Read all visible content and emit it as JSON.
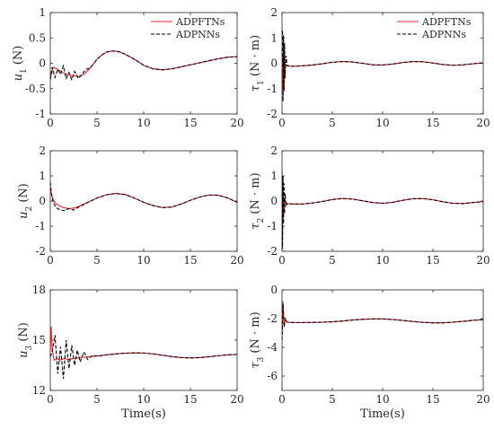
{
  "legend": {
    "entries": [
      "ADPFTNs",
      "ADPNNs"
    ]
  },
  "colors": {
    "ADPFTNs": "#e8242a",
    "ADPNNs": "#000000"
  },
  "chart_data": [
    {
      "id": "u1",
      "type": "line",
      "ylabel": "u_1 (N)",
      "ylabel_var": "u",
      "ylabel_sub": "1",
      "ylabel_unit": " (N)",
      "xlim": [
        0,
        20
      ],
      "ylim": [
        -1,
        1
      ],
      "xticks": [
        "0",
        "5",
        "10",
        "15",
        "20"
      ],
      "yticks": [
        "-1",
        "-0.5",
        "0",
        "0.5",
        "1"
      ],
      "legend": "top-right",
      "series": [
        {
          "name": "ADPFTNs",
          "style": "solid",
          "x": [
            0,
            0.3,
            0.6,
            1,
            1.5,
            2,
            2.5,
            3,
            3.5,
            4,
            4.5,
            5,
            5.5,
            6,
            6.5,
            7,
            7.5,
            8,
            9,
            10,
            11,
            12,
            13,
            14,
            15,
            16,
            17,
            18,
            19,
            20
          ],
          "y": [
            -0.3,
            -0.08,
            -0.1,
            -0.15,
            -0.2,
            -0.23,
            -0.25,
            -0.26,
            -0.23,
            -0.15,
            -0.04,
            0.08,
            0.16,
            0.22,
            0.24,
            0.24,
            0.22,
            0.18,
            0.08,
            -0.04,
            -0.11,
            -0.13,
            -0.11,
            -0.07,
            -0.03,
            0.01,
            0.05,
            0.09,
            0.12,
            0.13
          ]
        },
        {
          "name": "ADPNNs",
          "style": "dashed",
          "x": [
            0,
            0.2,
            0.5,
            0.8,
            1.1,
            1.4,
            1.7,
            2,
            2.3,
            2.6,
            3,
            3.4,
            3.8,
            4.2,
            4.6,
            5,
            5.5,
            6,
            6.5,
            7,
            7.5,
            8,
            9,
            10,
            11,
            12,
            13,
            14,
            15,
            16,
            17,
            18,
            19,
            20
          ],
          "y": [
            -0.32,
            -0.08,
            -0.28,
            -0.12,
            -0.22,
            -0.05,
            -0.3,
            -0.18,
            -0.32,
            -0.16,
            -0.3,
            -0.22,
            -0.12,
            -0.1,
            -0.02,
            0.08,
            0.16,
            0.22,
            0.24,
            0.24,
            0.22,
            0.18,
            0.08,
            -0.04,
            -0.11,
            -0.13,
            -0.11,
            -0.07,
            -0.03,
            0.01,
            0.05,
            0.09,
            0.12,
            0.13
          ]
        }
      ]
    },
    {
      "id": "tau1",
      "type": "line",
      "ylabel": "τ_1 (N · m)",
      "ylabel_var": "τ",
      "ylabel_sub": "1",
      "ylabel_unit": " (N · m)",
      "xlim": [
        0,
        20
      ],
      "ylim": [
        -2,
        2
      ],
      "xticks": [
        "0",
        "5",
        "10",
        "15",
        "20"
      ],
      "yticks": [
        "-2",
        "-1",
        "0",
        "1",
        "2"
      ],
      "legend": "top-right",
      "series": [
        {
          "name": "ADPFTNs",
          "style": "solid",
          "x": [
            0,
            0.05,
            0.1,
            0.15,
            0.2,
            0.3,
            0.5,
            1,
            2,
            3,
            4,
            5,
            6,
            7,
            8,
            9,
            10,
            11,
            12,
            13,
            14,
            15,
            16,
            17,
            18,
            19,
            20
          ],
          "y": [
            -0.1,
            -1.1,
            0.3,
            -0.6,
            0.1,
            -0.05,
            -0.08,
            -0.12,
            -0.1,
            -0.07,
            -0.02,
            0.04,
            0.07,
            0.05,
            0,
            -0.06,
            -0.07,
            -0.03,
            0.03,
            0.07,
            0.06,
            0.01,
            -0.05,
            -0.08,
            -0.06,
            -0.02,
            0.02
          ]
        },
        {
          "name": "ADPNNs",
          "style": "dashed",
          "x": [
            0,
            0.05,
            0.1,
            0.15,
            0.2,
            0.25,
            0.3,
            0.4,
            0.5,
            1,
            2,
            3,
            4,
            5,
            6,
            7,
            8,
            9,
            10,
            11,
            12,
            13,
            14,
            15,
            16,
            17,
            18,
            19,
            20
          ],
          "y": [
            0.5,
            1.3,
            -1.5,
            1.1,
            -1.1,
            0.8,
            -0.6,
            0.3,
            -0.1,
            -0.12,
            -0.1,
            -0.07,
            -0.02,
            0.04,
            0.07,
            0.05,
            0,
            -0.06,
            -0.07,
            -0.03,
            0.03,
            0.07,
            0.06,
            0.01,
            -0.05,
            -0.08,
            -0.06,
            -0.02,
            0.02
          ]
        }
      ]
    },
    {
      "id": "u2",
      "type": "line",
      "ylabel": "u_2 (N)",
      "ylabel_var": "u",
      "ylabel_sub": "2",
      "ylabel_unit": " (N)",
      "xlim": [
        0,
        20
      ],
      "ylim": [
        -2,
        2
      ],
      "xticks": [
        "0",
        "5",
        "10",
        "15",
        "20"
      ],
      "yticks": [
        "-2",
        "-1",
        "0",
        "1",
        "2"
      ],
      "series": [
        {
          "name": "ADPFTNs",
          "style": "solid",
          "x": [
            0,
            0.1,
            0.3,
            0.6,
            1,
            1.5,
            2,
            2.5,
            3,
            4,
            5,
            6,
            7,
            8,
            9,
            10,
            11,
            12,
            13,
            14,
            15,
            16,
            17,
            18,
            19,
            20
          ],
          "y": [
            0.6,
            0.3,
            0.05,
            -0.1,
            -0.2,
            -0.27,
            -0.3,
            -0.28,
            -0.22,
            -0.05,
            0.12,
            0.25,
            0.3,
            0.26,
            0.12,
            -0.05,
            -0.18,
            -0.26,
            -0.24,
            -0.12,
            0.03,
            0.16,
            0.24,
            0.23,
            0.12,
            -0.05
          ]
        },
        {
          "name": "ADPNNs",
          "style": "dashed",
          "x": [
            0,
            0.1,
            0.3,
            0.6,
            1,
            1.5,
            2,
            2.5,
            3,
            4,
            5,
            6,
            7,
            8,
            9,
            10,
            11,
            12,
            13,
            14,
            15,
            16,
            17,
            18,
            19,
            20
          ],
          "y": [
            0.75,
            0.35,
            -0.05,
            -0.25,
            -0.35,
            -0.38,
            -0.3,
            -0.36,
            -0.25,
            -0.06,
            0.12,
            0.25,
            0.3,
            0.26,
            0.12,
            -0.05,
            -0.18,
            -0.26,
            -0.24,
            -0.12,
            0.03,
            0.16,
            0.24,
            0.23,
            0.12,
            -0.05
          ]
        }
      ]
    },
    {
      "id": "tau2",
      "type": "line",
      "ylabel": "τ_2 (N · m)",
      "ylabel_var": "τ",
      "ylabel_sub": "2",
      "ylabel_unit": " (N · m)",
      "xlim": [
        0,
        20
      ],
      "ylim": [
        -2,
        2
      ],
      "xticks": [
        "0",
        "5",
        "10",
        "15",
        "20"
      ],
      "yticks": [
        "-2",
        "-1",
        "0",
        "1",
        "2"
      ],
      "series": [
        {
          "name": "ADPFTNs",
          "style": "solid",
          "x": [
            0,
            0.05,
            0.1,
            0.15,
            0.2,
            0.3,
            0.5,
            1,
            2,
            3,
            4,
            5,
            6,
            7,
            8,
            9,
            10,
            11,
            12,
            13,
            14,
            15,
            16,
            17,
            18,
            19,
            20
          ],
          "y": [
            0.3,
            -1.4,
            0.5,
            -0.5,
            0.1,
            -0.05,
            -0.1,
            -0.12,
            -0.12,
            -0.08,
            -0.02,
            0.06,
            0.1,
            0.08,
            0.01,
            -0.06,
            -0.09,
            -0.05,
            0.03,
            0.09,
            0.1,
            0.05,
            -0.03,
            -0.09,
            -0.1,
            -0.06,
            -0.02
          ]
        },
        {
          "name": "ADPNNs",
          "style": "dashed",
          "x": [
            0,
            0.05,
            0.1,
            0.15,
            0.2,
            0.25,
            0.3,
            0.4,
            0.5,
            1,
            2,
            3,
            4,
            5,
            6,
            7,
            8,
            9,
            10,
            11,
            12,
            13,
            14,
            15,
            16,
            17,
            18,
            19,
            20
          ],
          "y": [
            1.2,
            -1.9,
            1.0,
            -0.9,
            0.7,
            -0.5,
            0.3,
            -0.2,
            -0.1,
            -0.12,
            -0.12,
            -0.08,
            -0.02,
            0.06,
            0.1,
            0.08,
            0.01,
            -0.06,
            -0.09,
            -0.05,
            0.03,
            0.09,
            0.1,
            0.05,
            -0.03,
            -0.09,
            -0.1,
            -0.06,
            -0.02
          ]
        }
      ]
    },
    {
      "id": "u3",
      "type": "line",
      "ylabel": "u_3 (N)",
      "ylabel_var": "u",
      "ylabel_sub": "3",
      "ylabel_unit": " (N)",
      "xlim": [
        0,
        20
      ],
      "ylim": [
        12,
        18
      ],
      "xlabel": "Time(s)",
      "xticks": [
        "0",
        "5",
        "10",
        "15",
        "20"
      ],
      "yticks": [
        "12",
        "15",
        "18"
      ],
      "series": [
        {
          "name": "ADPFTNs",
          "style": "solid",
          "x": [
            0,
            0.1,
            0.2,
            0.4,
            0.7,
            1,
            1.5,
            2,
            3,
            4,
            5,
            6,
            7,
            8,
            9,
            10,
            11,
            12,
            13,
            14,
            15,
            16,
            17,
            18,
            19,
            20
          ],
          "y": [
            14.2,
            15.8,
            14.5,
            13.8,
            13.9,
            13.8,
            13.9,
            13.85,
            13.95,
            14.0,
            14.05,
            14.12,
            14.18,
            14.22,
            14.24,
            14.23,
            14.18,
            14.1,
            14.02,
            13.96,
            13.94,
            13.96,
            14.01,
            14.07,
            14.12,
            14.15
          ]
        },
        {
          "name": "ADPNNs",
          "style": "dashed",
          "x": [
            0,
            0.2,
            0.5,
            0.8,
            1.1,
            1.4,
            1.7,
            2,
            2.3,
            2.6,
            2.9,
            3.2,
            3.6,
            4,
            4.5,
            5,
            6,
            7,
            8,
            9,
            10,
            11,
            12,
            13,
            14,
            15,
            16,
            17,
            18,
            19,
            20
          ],
          "y": [
            14.0,
            14.3,
            15.3,
            13.0,
            14.6,
            12.7,
            15.0,
            13.3,
            14.7,
            13.5,
            14.4,
            13.7,
            14.3,
            13.85,
            14.1,
            14.05,
            14.12,
            14.18,
            14.22,
            14.24,
            14.23,
            14.18,
            14.1,
            14.02,
            13.96,
            13.94,
            13.96,
            14.01,
            14.07,
            14.12,
            14.15
          ]
        }
      ]
    },
    {
      "id": "tau3",
      "type": "line",
      "ylabel": "τ_3 (N · m)",
      "ylabel_var": "τ",
      "ylabel_sub": "3",
      "ylabel_unit": " (N · m)",
      "xlim": [
        0,
        20
      ],
      "ylim": [
        -7,
        0
      ],
      "xlabel": "Time(s)",
      "xticks": [
        "0",
        "5",
        "10",
        "15",
        "20"
      ],
      "yticks": [
        "-6",
        "-4",
        "-2",
        "0"
      ],
      "series": [
        {
          "name": "ADPFTNs",
          "style": "solid",
          "x": [
            0,
            0.1,
            0.2,
            0.35,
            0.5,
            1,
            2,
            3,
            4,
            5,
            6,
            7,
            8,
            9,
            10,
            11,
            12,
            13,
            14,
            15,
            16,
            17,
            18,
            19,
            20
          ],
          "y": [
            -3.2,
            -0.8,
            -2.4,
            -2.1,
            -2.25,
            -2.27,
            -2.28,
            -2.27,
            -2.25,
            -2.22,
            -2.17,
            -2.1,
            -2.05,
            -2.02,
            -2.02,
            -2.06,
            -2.13,
            -2.2,
            -2.26,
            -2.29,
            -2.29,
            -2.25,
            -2.19,
            -2.12,
            -2.07
          ]
        },
        {
          "name": "ADPNNs",
          "style": "dashed",
          "x": [
            0,
            0.1,
            0.2,
            0.35,
            0.5,
            1,
            2,
            3,
            4,
            5,
            6,
            7,
            8,
            9,
            10,
            11,
            12,
            13,
            14,
            15,
            16,
            17,
            18,
            19,
            20
          ],
          "y": [
            -3.5,
            -1.0,
            -2.6,
            -2.0,
            -2.25,
            -2.27,
            -2.28,
            -2.27,
            -2.25,
            -2.22,
            -2.17,
            -2.1,
            -2.05,
            -2.02,
            -2.02,
            -2.06,
            -2.13,
            -2.2,
            -2.26,
            -2.29,
            -2.29,
            -2.25,
            -2.19,
            -2.12,
            -2.07
          ]
        }
      ]
    }
  ]
}
